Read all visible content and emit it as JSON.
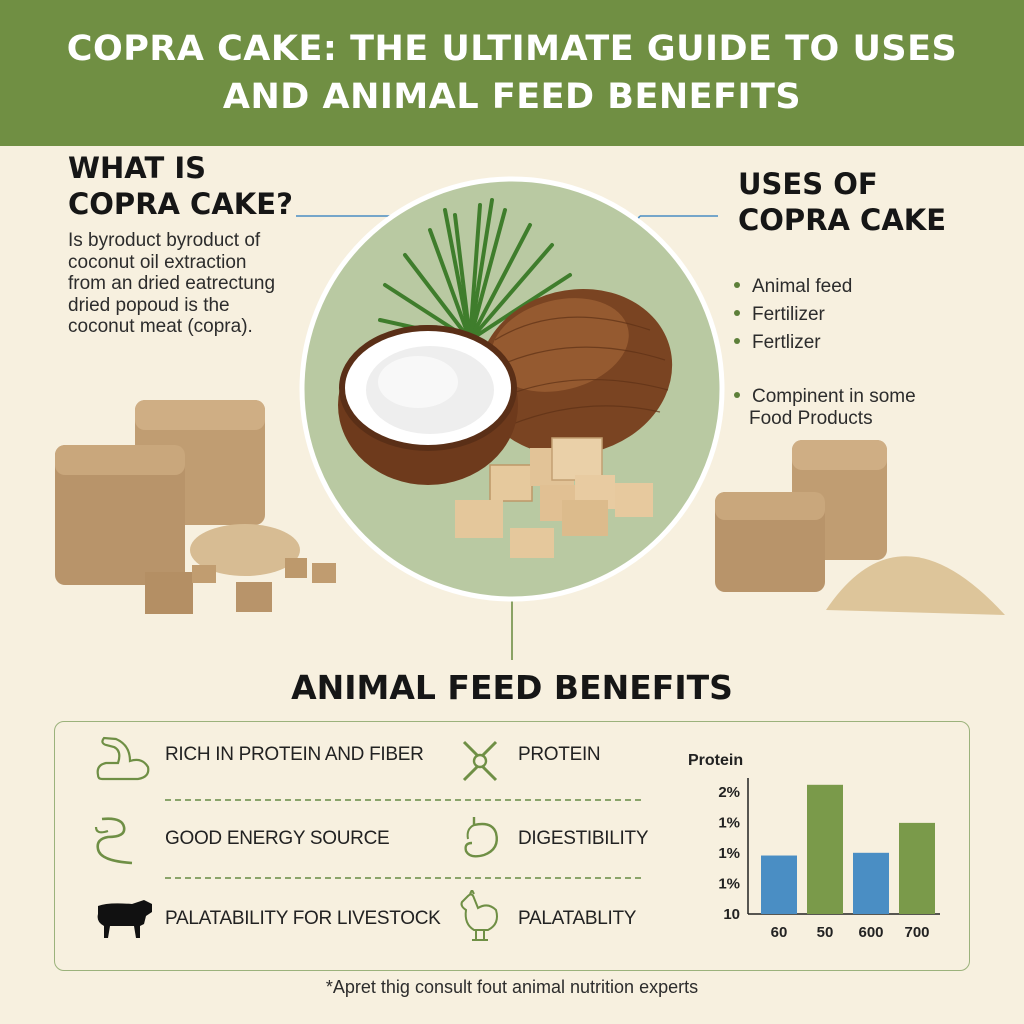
{
  "header": {
    "title_line1": "COPRA CAKE: THE ULTIMATE GUIDE TO USES",
    "title_line2": "AND ANIMAL FEED BENEFITS"
  },
  "what": {
    "heading_line1": "WHAT IS",
    "heading_line2": "COPRA CAKE?",
    "description_lines": [
      "Is byroduct byroduct of",
      "coconut oil extraction",
      "from an dried eatrectung",
      "dried popoud is the",
      "coconut meat (copra)."
    ]
  },
  "uses": {
    "heading_line1": "USES OF",
    "heading_line2": "COPRA CAKE",
    "items": [
      "Animal feed",
      "Fertilizer",
      "Fertlizer",
      "Compinent in some",
      "Food Products"
    ]
  },
  "benefits": {
    "title": "ANIMAL FEED BENEFITS",
    "rows": [
      {
        "left_label": "RICH IN PROTEIN AND FIBER",
        "left_icon": "muscle-arm-icon",
        "right_label": "PROTEIN",
        "right_icon": "molecule-icon"
      },
      {
        "left_label": "GOOD ENERGY SOURCE",
        "left_icon": "intestine-icon",
        "right_label": "DIGESTIBILITY",
        "right_icon": "stomach-icon"
      },
      {
        "left_label": "PALATABILITY FOR LIVESTOCK",
        "left_icon": "cow-icon",
        "right_label": "PALATABLITY",
        "right_icon": "chicken-icon"
      }
    ]
  },
  "chart_data": {
    "type": "bar",
    "title": "Protein",
    "categories": [
      "60",
      "50",
      "600",
      "700"
    ],
    "y_tick_labels": [
      "2%",
      "1%",
      "1%",
      "1%",
      "10"
    ],
    "values": [
      0.43,
      0.95,
      0.45,
      0.67
    ],
    "value_scale_note_visible": false,
    "bar_colors": [
      "#4a8ec4",
      "#7a9a4a",
      "#4a8ec4",
      "#7a9a4a"
    ]
  },
  "footer": {
    "note": "*Apret thig consult fout animal nutrition experts"
  },
  "colors": {
    "header_bg": "#708f43",
    "page_bg": "#f7f0df",
    "accent_green": "#5d7f39",
    "connector_blue": "#4a8ec4",
    "bar_blue": "#4a8ec4",
    "bar_green": "#7a9a4a"
  }
}
